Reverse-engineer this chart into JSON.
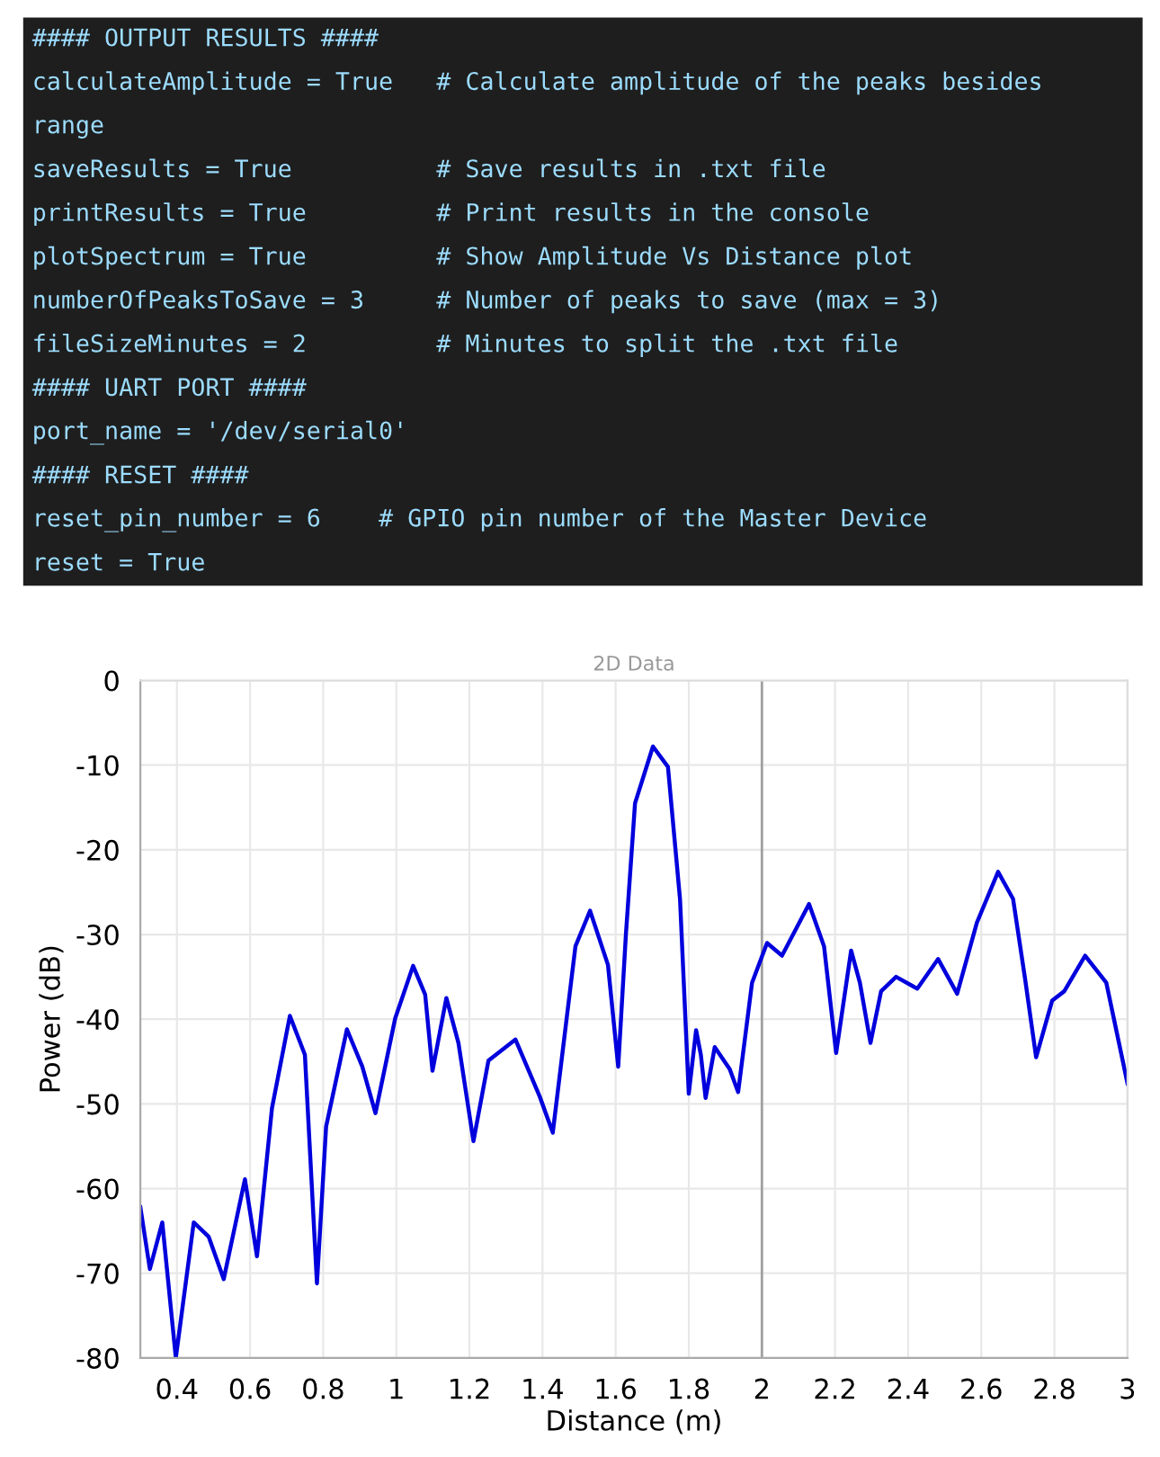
{
  "chart_data": [
    {
      "type": "other",
      "annotations": [
        "#### OUTPUT RESULTS ####",
        "calculateAmplitude = True   # Calculate amplitude of the peaks besides",
        "range",
        "saveResults = True          # Save results in .txt file",
        "printResults = True         # Print results in the console",
        "plotSpectrum = True         # Show Amplitude Vs Distance plot",
        "numberOfPeaksToSave = 3     # Number of peaks to save (max = 3)",
        "fileSizeMinutes = 2         # Minutes to split the .txt file",
        "#### UART PORT ####",
        "port_name = '/dev/serial0'",
        "#### RESET ####",
        "reset_pin_number = 6    # GPIO pin number of the Master Device",
        "reset = True"
      ]
    },
    {
      "type": "line",
      "title": "2D Data",
      "xlabel": "Distance (m)",
      "ylabel": "Power (dB)",
      "xlim": [
        0.3,
        3
      ],
      "xticks": [
        0.4,
        0.6,
        0.8,
        1,
        1.2,
        1.4,
        1.6,
        1.8,
        2,
        2.2,
        2.4,
        2.6,
        2.8,
        3
      ],
      "ylim": [
        -80,
        0
      ],
      "yticks": [
        -80,
        -70,
        -60,
        -50,
        -40,
        -30,
        -20,
        -10,
        0
      ],
      "grid": true,
      "legend": false,
      "marker": "none",
      "line_style": "solid",
      "ref_lines": [
        {
          "axis": "x",
          "value": 2,
          "color": "#a0a0a0"
        }
      ],
      "series": [
        {
          "color": "#0000dd",
          "x": [
            0.3,
            0.326,
            0.36,
            0.397,
            0.446,
            0.487,
            0.528,
            0.586,
            0.619,
            0.66,
            0.709,
            0.75,
            0.783,
            0.808,
            0.865,
            0.907,
            0.943,
            0.997,
            1.046,
            1.079,
            1.099,
            1.137,
            1.17,
            1.211,
            1.252,
            1.326,
            1.392,
            1.428,
            1.466,
            1.49,
            1.53,
            1.579,
            1.607,
            1.628,
            1.653,
            1.702,
            1.743,
            1.776,
            1.8,
            1.82,
            1.833,
            1.846,
            1.871,
            1.912,
            1.935,
            1.973,
            2.014,
            2.055,
            2.129,
            2.17,
            2.203,
            2.244,
            2.268,
            2.297,
            2.326,
            2.367,
            2.425,
            2.482,
            2.534,
            2.588,
            2.646,
            2.687,
            2.72,
            2.75,
            2.794,
            2.827,
            2.884,
            2.942,
            3.0
          ],
          "values": [
            -62.2,
            -69.5,
            -64,
            -80,
            -64,
            -65.7,
            -70.7,
            -58.9,
            -68,
            -50.5,
            -39.6,
            -44.2,
            -71.2,
            -52.7,
            -41.2,
            -45.6,
            -51.1,
            -39.9,
            -33.7,
            -37.1,
            -46.1,
            -37.5,
            -42.8,
            -54.4,
            -44.9,
            -42.4,
            -49.1,
            -53.4,
            -39.9,
            -31.4,
            -27.2,
            -33.6,
            -45.6,
            -30,
            -14.5,
            -7.8,
            -10.2,
            -25.8,
            -48.8,
            -41.3,
            -44.2,
            -49.3,
            -43.3,
            -45.9,
            -48.6,
            -35.7,
            -31,
            -32.5,
            -26.4,
            -31.4,
            -44,
            -31.9,
            -35.7,
            -42.8,
            -36.7,
            -35,
            -36.4,
            -32.9,
            -37,
            -28.6,
            -22.6,
            -25.8,
            -35.3,
            -44.5,
            -37.8,
            -36.7,
            -32.5,
            -35.7,
            -47.6
          ]
        }
      ]
    }
  ]
}
